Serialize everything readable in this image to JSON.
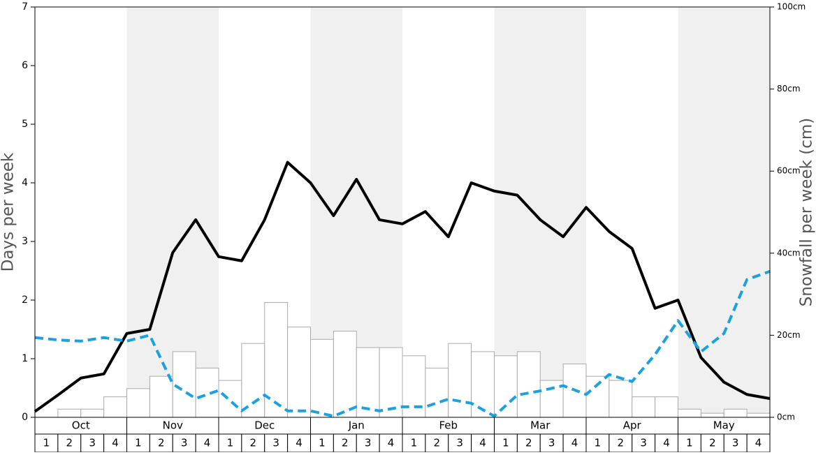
{
  "chart_data": {
    "type": "bar-line",
    "ylabel": "Days per week",
    "y2label": "Snowfall per week (cm)",
    "months": [
      "Oct",
      "Nov",
      "Dec",
      "Jan",
      "Feb",
      "Mar",
      "Apr",
      "May"
    ],
    "categories": [
      "1",
      "2",
      "3",
      "4",
      "1",
      "2",
      "3",
      "4",
      "1",
      "2",
      "3",
      "4",
      "1",
      "2",
      "3",
      "4",
      "1",
      "2",
      "3",
      "4",
      "1",
      "2",
      "3",
      "4",
      "1",
      "2",
      "3",
      "4",
      "1",
      "2",
      "3",
      "4"
    ],
    "ylim": [
      0,
      7
    ],
    "yticks": [
      0,
      1,
      2,
      3,
      4,
      5,
      6,
      7
    ],
    "y2lim": [
      0,
      100
    ],
    "y2ticks": [
      {
        "value": 0,
        "label": "0cm"
      },
      {
        "value": 20,
        "label": "20cm"
      },
      {
        "value": 40,
        "label": "40cm"
      },
      {
        "value": 60,
        "label": "60cm"
      },
      {
        "value": 80,
        "label": "80cm"
      },
      {
        "value": 100,
        "label": "100cm"
      }
    ],
    "xlim": [
      0,
      32
    ],
    "bars": {
      "axis": "y2",
      "color": "#ffffff",
      "edge": "#aaaaaa",
      "values": [
        0,
        2,
        2,
        5,
        7,
        10,
        16,
        12,
        9,
        18,
        28,
        22,
        19,
        21,
        17,
        17,
        15,
        12,
        18,
        16,
        15,
        16,
        9,
        13,
        10,
        9,
        5,
        5,
        2,
        1,
        2,
        1
      ]
    },
    "x": [
      0,
      1,
      2,
      3,
      4,
      5,
      6,
      7,
      8,
      9,
      10,
      11,
      12,
      13,
      14,
      15,
      16,
      17,
      18,
      19,
      20,
      21,
      22,
      23,
      24,
      25,
      26,
      27,
      28,
      29,
      30,
      31,
      32
    ],
    "series": [
      {
        "color": "#000000",
        "dashed": false,
        "values": [
          0.1,
          0.38,
          0.67,
          0.74,
          1.43,
          1.5,
          2.81,
          3.37,
          2.74,
          2.67,
          3.37,
          4.35,
          4.0,
          3.44,
          4.06,
          3.37,
          3.3,
          3.51,
          3.08,
          4.0,
          3.86,
          3.79,
          3.37,
          3.08,
          3.58,
          3.17,
          2.88,
          1.86,
          2.0,
          1.02,
          0.6,
          0.39,
          0.32
        ]
      },
      {
        "color": "#1ba1e2",
        "dashed": true,
        "values": [
          1.36,
          1.32,
          1.3,
          1.36,
          1.3,
          1.4,
          0.57,
          0.32,
          0.46,
          0.11,
          0.38,
          0.11,
          0.11,
          0.02,
          0.18,
          0.11,
          0.18,
          0.18,
          0.31,
          0.24,
          0.02,
          0.38,
          0.45,
          0.54,
          0.39,
          0.73,
          0.61,
          1.07,
          1.65,
          1.12,
          1.43,
          2.35,
          2.49
        ]
      }
    ]
  }
}
